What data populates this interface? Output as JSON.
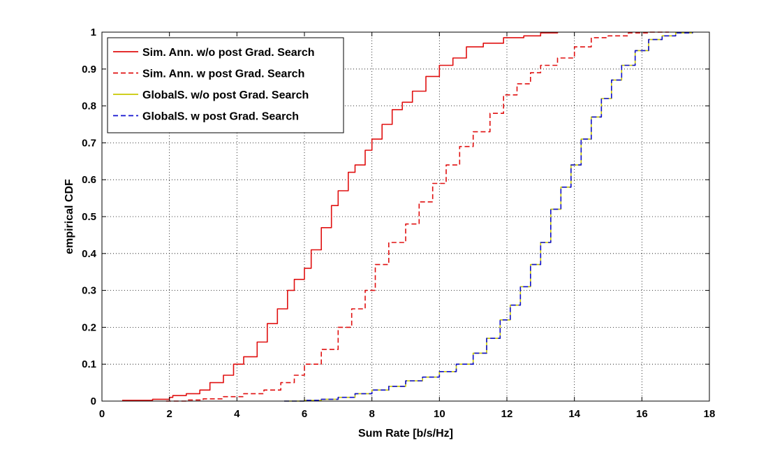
{
  "chart_data": {
    "type": "line",
    "title": "",
    "xlabel": "Sum Rate [b/s/Hz]",
    "ylabel": "empirical CDF",
    "xlim": [
      0,
      18
    ],
    "ylim": [
      0,
      1
    ],
    "grid": true,
    "legend_position": "top-left",
    "x_ticks": [
      "0",
      "2",
      "4",
      "6",
      "8",
      "10",
      "12",
      "14",
      "16",
      "18"
    ],
    "y_ticks": [
      "0",
      "0.1",
      "0.2",
      "0.3",
      "0.4",
      "0.5",
      "0.6",
      "0.7",
      "0.8",
      "0.9",
      "1"
    ],
    "series": [
      {
        "name": "Sim. Ann. w/o post Grad. Search",
        "color": "#e01010",
        "dash": "solid",
        "x": [
          0.6,
          1.5,
          2.0,
          2.1,
          2.5,
          2.9,
          3.2,
          3.6,
          3.9,
          4.2,
          4.6,
          4.9,
          5.2,
          5.5,
          5.7,
          6.0,
          6.2,
          6.5,
          6.8,
          7.0,
          7.3,
          7.5,
          7.8,
          8.0,
          8.3,
          8.6,
          8.9,
          9.2,
          9.6,
          10.0,
          10.4,
          10.8,
          11.3,
          11.9,
          12.5,
          13.0,
          13.5
        ],
        "y": [
          0.002,
          0.005,
          0.01,
          0.015,
          0.02,
          0.03,
          0.05,
          0.07,
          0.1,
          0.12,
          0.16,
          0.21,
          0.25,
          0.3,
          0.33,
          0.36,
          0.41,
          0.47,
          0.53,
          0.57,
          0.62,
          0.64,
          0.68,
          0.71,
          0.75,
          0.79,
          0.81,
          0.84,
          0.88,
          0.91,
          0.93,
          0.96,
          0.97,
          0.985,
          0.99,
          0.998,
          1.0
        ]
      },
      {
        "name": "Sim. Ann. w post Grad. Search",
        "color": "#e01010",
        "dash": "dashed",
        "x": [
          1.9,
          2.5,
          3.0,
          3.6,
          4.2,
          4.8,
          5.3,
          5.7,
          6.0,
          6.5,
          7.0,
          7.4,
          7.8,
          8.1,
          8.5,
          9.0,
          9.4,
          9.8,
          10.2,
          10.6,
          11.0,
          11.5,
          11.9,
          12.3,
          12.7,
          13.0,
          13.5,
          14.0,
          14.5,
          15.0,
          15.6,
          16.2,
          16.8
        ],
        "y": [
          0.0,
          0.003,
          0.006,
          0.012,
          0.02,
          0.03,
          0.05,
          0.07,
          0.1,
          0.14,
          0.2,
          0.25,
          0.3,
          0.37,
          0.43,
          0.48,
          0.54,
          0.59,
          0.64,
          0.69,
          0.73,
          0.78,
          0.83,
          0.86,
          0.89,
          0.91,
          0.93,
          0.96,
          0.985,
          0.99,
          0.998,
          1.0,
          1.0
        ]
      },
      {
        "name": "GlobalS. w/o post Grad. Search",
        "color": "#c8c800",
        "dash": "solid",
        "x": [
          5.4,
          6.0,
          6.5,
          7.0,
          7.5,
          8.0,
          8.5,
          9.0,
          9.5,
          10.0,
          10.5,
          11.0,
          11.4,
          11.8,
          12.1,
          12.4,
          12.7,
          13.0,
          13.3,
          13.6,
          13.9,
          14.2,
          14.5,
          14.8,
          15.1,
          15.4,
          15.8,
          16.2,
          16.6,
          17.0,
          17.5
        ],
        "y": [
          0.0,
          0.002,
          0.005,
          0.01,
          0.02,
          0.03,
          0.04,
          0.055,
          0.065,
          0.08,
          0.1,
          0.13,
          0.17,
          0.22,
          0.26,
          0.31,
          0.37,
          0.43,
          0.52,
          0.58,
          0.64,
          0.71,
          0.77,
          0.82,
          0.87,
          0.91,
          0.95,
          0.98,
          0.99,
          0.998,
          1.0
        ]
      },
      {
        "name": "GlobalS. w post Grad. Search",
        "color": "#1010d0",
        "dash": "dashed",
        "x": [
          5.4,
          6.0,
          6.5,
          7.0,
          7.5,
          8.0,
          8.5,
          9.0,
          9.5,
          10.0,
          10.5,
          11.0,
          11.4,
          11.8,
          12.1,
          12.4,
          12.7,
          13.0,
          13.3,
          13.6,
          13.9,
          14.2,
          14.5,
          14.8,
          15.1,
          15.4,
          15.8,
          16.2,
          16.6,
          17.0,
          17.5
        ],
        "y": [
          0.0,
          0.002,
          0.005,
          0.01,
          0.02,
          0.03,
          0.04,
          0.055,
          0.065,
          0.08,
          0.1,
          0.13,
          0.17,
          0.22,
          0.26,
          0.31,
          0.37,
          0.43,
          0.52,
          0.58,
          0.64,
          0.71,
          0.77,
          0.82,
          0.87,
          0.91,
          0.95,
          0.98,
          0.99,
          0.998,
          1.0
        ]
      }
    ]
  }
}
